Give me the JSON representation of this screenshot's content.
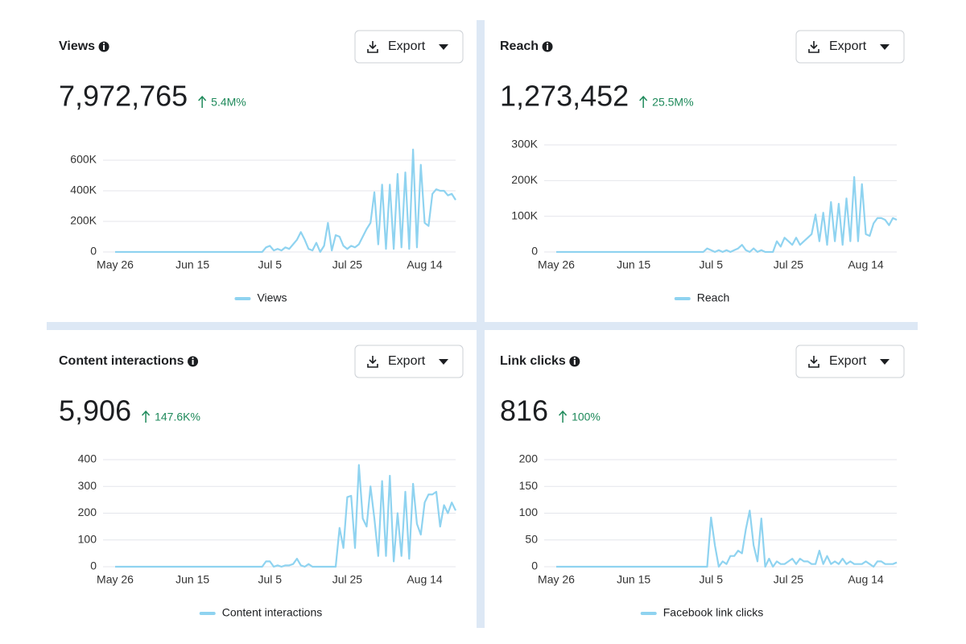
{
  "chart_data": [
    {
      "type": "line",
      "title": "Views",
      "total": "7,972,765",
      "change": "5.4M%",
      "button": "Export",
      "categories": [
        "May 26",
        null,
        null,
        null,
        null,
        null,
        null,
        null,
        null,
        null,
        null,
        null,
        null,
        null,
        null,
        null,
        null,
        null,
        null,
        null,
        "Jun 15",
        null,
        null,
        null,
        null,
        null,
        null,
        null,
        null,
        null,
        null,
        null,
        null,
        null,
        null,
        null,
        null,
        null,
        null,
        null,
        "Jul 5",
        null,
        null,
        null,
        null,
        null,
        null,
        null,
        null,
        null,
        null,
        null,
        null,
        null,
        null,
        null,
        null,
        null,
        null,
        null,
        "Jul 25",
        null,
        null,
        null,
        null,
        null,
        null,
        null,
        null,
        null,
        null,
        null,
        null,
        null,
        null,
        null,
        null,
        null,
        null,
        null,
        "Aug 14",
        null,
        null,
        null,
        null,
        null,
        null,
        null,
        null
      ],
      "series": [
        {
          "name": "Views",
          "color": "#8fd3f0",
          "values": [
            0,
            0,
            0,
            0,
            0,
            0,
            0,
            0,
            0,
            0,
            0,
            0,
            0,
            0,
            0,
            0,
            0,
            0,
            0,
            0,
            0,
            0,
            0,
            0,
            0,
            0,
            0,
            0,
            0,
            0,
            0,
            0,
            0,
            0,
            0,
            0,
            0,
            0,
            0,
            30000,
            40000,
            10000,
            20000,
            10000,
            30000,
            20000,
            50000,
            80000,
            130000,
            80000,
            20000,
            10000,
            60000,
            0,
            40000,
            190000,
            10000,
            110000,
            100000,
            40000,
            20000,
            40000,
            30000,
            50000,
            100000,
            150000,
            190000,
            390000,
            50000,
            440000,
            20000,
            440000,
            20000,
            510000,
            30000,
            520000,
            20000,
            670000,
            30000,
            570000,
            190000,
            170000,
            380000,
            410000,
            400000,
            400000,
            370000,
            380000,
            340000
          ]
        }
      ],
      "ylim": [
        0,
        700000
      ],
      "yticks": [
        0,
        {
          "value": 200000,
          "label": "200K"
        },
        {
          "value": 400000,
          "label": "400K"
        },
        {
          "value": 600000,
          "label": "600K"
        }
      ],
      "grid": true
    },
    {
      "type": "line",
      "title": "Reach",
      "total": "1,273,452",
      "change": "25.5M%",
      "button": "Export",
      "categories": [
        "May 26",
        null,
        null,
        null,
        null,
        null,
        null,
        null,
        null,
        null,
        null,
        null,
        null,
        null,
        null,
        null,
        null,
        null,
        null,
        null,
        "Jun 15",
        null,
        null,
        null,
        null,
        null,
        null,
        null,
        null,
        null,
        null,
        null,
        null,
        null,
        null,
        null,
        null,
        null,
        null,
        null,
        "Jul 5",
        null,
        null,
        null,
        null,
        null,
        null,
        null,
        null,
        null,
        null,
        null,
        null,
        null,
        null,
        null,
        null,
        null,
        null,
        null,
        "Jul 25",
        null,
        null,
        null,
        null,
        null,
        null,
        null,
        null,
        null,
        null,
        null,
        null,
        null,
        null,
        null,
        null,
        null,
        null,
        null,
        "Aug 14",
        null,
        null,
        null,
        null,
        null,
        null,
        null,
        null
      ],
      "series": [
        {
          "name": "Reach",
          "color": "#8fd3f0",
          "values": [
            0,
            0,
            0,
            0,
            0,
            0,
            0,
            0,
            0,
            0,
            0,
            0,
            0,
            0,
            0,
            0,
            0,
            0,
            0,
            0,
            0,
            0,
            0,
            0,
            0,
            0,
            0,
            0,
            0,
            0,
            0,
            0,
            0,
            0,
            0,
            0,
            0,
            0,
            0,
            10000,
            5000,
            0,
            5000,
            0,
            5000,
            0,
            5000,
            10000,
            20000,
            5000,
            0,
            10000,
            0,
            5000,
            0,
            0,
            0,
            30000,
            15000,
            40000,
            30000,
            20000,
            40000,
            20000,
            30000,
            40000,
            50000,
            105000,
            30000,
            110000,
            20000,
            140000,
            30000,
            135000,
            20000,
            150000,
            30000,
            210000,
            30000,
            190000,
            50000,
            45000,
            80000,
            95000,
            95000,
            90000,
            75000,
            95000,
            90000
          ]
        }
      ],
      "ylim": [
        0,
        300000
      ],
      "yticks": [
        0,
        {
          "value": 100000,
          "label": "100K"
        },
        {
          "value": 200000,
          "label": "200K"
        },
        {
          "value": 300000,
          "label": "300K"
        }
      ],
      "grid": true
    },
    {
      "type": "line",
      "title": "Content interactions",
      "total": "5,906",
      "change": "147.6K%",
      "button": "Export",
      "categories": [
        "May 26",
        null,
        null,
        null,
        null,
        null,
        null,
        null,
        null,
        null,
        null,
        null,
        null,
        null,
        null,
        null,
        null,
        null,
        null,
        null,
        "Jun 15",
        null,
        null,
        null,
        null,
        null,
        null,
        null,
        null,
        null,
        null,
        null,
        null,
        null,
        null,
        null,
        null,
        null,
        null,
        null,
        "Jul 5",
        null,
        null,
        null,
        null,
        null,
        null,
        null,
        null,
        null,
        null,
        null,
        null,
        null,
        null,
        null,
        null,
        null,
        null,
        null,
        "Jul 25",
        null,
        null,
        null,
        null,
        null,
        null,
        null,
        null,
        null,
        null,
        null,
        null,
        null,
        null,
        null,
        null,
        null,
        null,
        null,
        "Aug 14",
        null,
        null,
        null,
        null,
        null,
        null,
        null,
        null
      ],
      "series": [
        {
          "name": "Content interactions",
          "color": "#8fd3f0",
          "values": [
            0,
            0,
            0,
            0,
            0,
            0,
            0,
            0,
            0,
            0,
            0,
            0,
            0,
            0,
            0,
            0,
            0,
            0,
            0,
            0,
            0,
            0,
            0,
            0,
            0,
            0,
            0,
            0,
            0,
            0,
            0,
            0,
            0,
            0,
            0,
            0,
            0,
            0,
            0,
            20,
            20,
            0,
            5,
            0,
            5,
            5,
            10,
            30,
            5,
            0,
            10,
            0,
            0,
            0,
            0,
            0,
            0,
            0,
            145,
            70,
            260,
            265,
            70,
            380,
            180,
            150,
            300,
            180,
            40,
            320,
            40,
            340,
            20,
            200,
            40,
            280,
            30,
            310,
            160,
            120,
            240,
            270,
            270,
            280,
            150,
            230,
            200,
            240,
            210
          ]
        }
      ],
      "ylim": [
        0,
        400
      ],
      "yticks": [
        0,
        100,
        200,
        300,
        400
      ],
      "grid": true
    },
    {
      "type": "line",
      "title": "Link clicks",
      "total": "816",
      "change": "100%",
      "button": "Export",
      "categories": [
        "May 26",
        null,
        null,
        null,
        null,
        null,
        null,
        null,
        null,
        null,
        null,
        null,
        null,
        null,
        null,
        null,
        null,
        null,
        null,
        null,
        "Jun 15",
        null,
        null,
        null,
        null,
        null,
        null,
        null,
        null,
        null,
        null,
        null,
        null,
        null,
        null,
        null,
        null,
        null,
        null,
        null,
        "Jul 5",
        null,
        null,
        null,
        null,
        null,
        null,
        null,
        null,
        null,
        null,
        null,
        null,
        null,
        null,
        null,
        null,
        null,
        null,
        null,
        "Jul 25",
        null,
        null,
        null,
        null,
        null,
        null,
        null,
        null,
        null,
        null,
        null,
        null,
        null,
        null,
        null,
        null,
        null,
        null,
        null,
        "Aug 14",
        null,
        null,
        null,
        null,
        null,
        null,
        null,
        null
      ],
      "series": [
        {
          "name": "Facebook link clicks",
          "color": "#8fd3f0",
          "values": [
            0,
            0,
            0,
            0,
            0,
            0,
            0,
            0,
            0,
            0,
            0,
            0,
            0,
            0,
            0,
            0,
            0,
            0,
            0,
            0,
            0,
            0,
            0,
            0,
            0,
            0,
            0,
            0,
            0,
            0,
            0,
            0,
            0,
            0,
            0,
            0,
            0,
            0,
            0,
            0,
            92,
            40,
            0,
            10,
            5,
            20,
            20,
            30,
            25,
            70,
            105,
            40,
            10,
            90,
            0,
            15,
            0,
            10,
            5,
            5,
            10,
            15,
            5,
            15,
            10,
            10,
            5,
            5,
            30,
            5,
            20,
            5,
            10,
            5,
            15,
            5,
            10,
            5,
            5,
            5,
            10,
            5,
            0,
            10,
            10,
            5,
            5,
            5,
            8
          ]
        }
      ],
      "ylim": [
        0,
        200
      ],
      "yticks": [
        0,
        50,
        100,
        150,
        200
      ],
      "grid": true
    }
  ]
}
